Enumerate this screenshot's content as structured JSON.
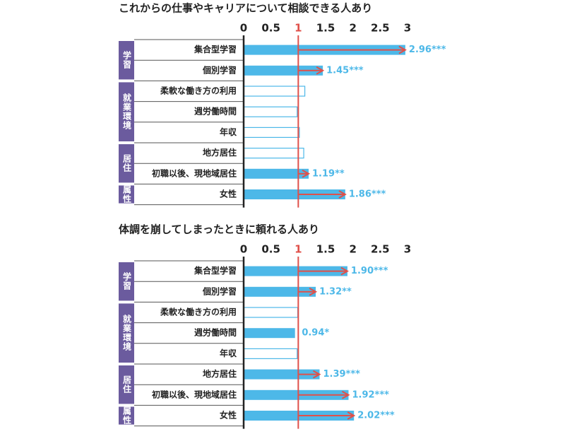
{
  "chart_data": [
    {
      "type": "hbar",
      "title": "これからの仕事やキャリアについて相談できる人あり",
      "groups": [
        {
          "label": "学習",
          "size": 2
        },
        {
          "label": "就業環境",
          "size": 3
        },
        {
          "label": "居住",
          "size": 2
        },
        {
          "label": "属性",
          "size": 1
        }
      ],
      "categories": [
        "集合型学習",
        "個別学習",
        "柔軟な働き方の利用",
        "週労働時間",
        "年収",
        "地方居住",
        "初職以後、現地域居住",
        "女性"
      ],
      "values": [
        2.96,
        1.45,
        1.12,
        0.98,
        1.02,
        1.1,
        1.19,
        1.86
      ],
      "value_labels": [
        "2.96***",
        "1.45***",
        null,
        null,
        null,
        null,
        "1.19**",
        "1.86***"
      ],
      "filled": [
        true,
        true,
        false,
        false,
        false,
        false,
        true,
        true
      ],
      "color": "#4db8e8",
      "label_color": "#4db8e8",
      "group_color": "#6b5b9e",
      "reference_line": 1,
      "reference_color": "#e0504a",
      "xlim": [
        0,
        3
      ],
      "xticks": [
        0,
        0.5,
        1,
        1.5,
        2,
        2.5,
        3
      ]
    },
    {
      "type": "hbar",
      "title": "体調を崩してしまったときに頼れる人あり",
      "groups": [
        {
          "label": "学習",
          "size": 2
        },
        {
          "label": "就業環境",
          "size": 3
        },
        {
          "label": "居住",
          "size": 2
        },
        {
          "label": "属性",
          "size": 1
        }
      ],
      "categories": [
        "集合型学習",
        "個別学習",
        "柔軟な働き方の利用",
        "週労働時間",
        "年収",
        "地方居住",
        "初職以後、現地域居住",
        "女性"
      ],
      "values": [
        1.9,
        1.32,
        0.99,
        0.94,
        0.98,
        1.39,
        1.92,
        2.02
      ],
      "value_labels": [
        "1.90***",
        "1.32**",
        null,
        "0.94*",
        null,
        "1.39***",
        "1.92***",
        "2.02***"
      ],
      "filled": [
        true,
        true,
        false,
        true,
        false,
        true,
        true,
        true
      ],
      "color": "#4db8e8",
      "label_color": "#4db8e8",
      "group_color": "#6b5b9e",
      "reference_line": 1,
      "reference_color": "#e0504a",
      "xlim": [
        0,
        3
      ],
      "xticks": [
        0,
        0.5,
        1,
        1.5,
        2,
        2.5,
        3
      ]
    }
  ]
}
